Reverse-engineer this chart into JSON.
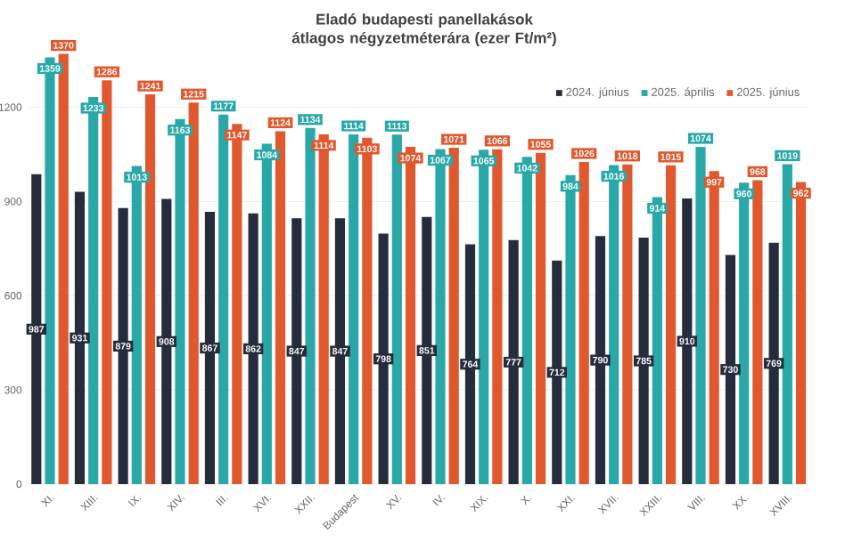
{
  "chart_data": {
    "type": "bar",
    "title": "Eladó budapesti panellakások átlagos négyzetméterára (ezer Ft/m²)",
    "categories": [
      "XI.",
      "XIII.",
      "IX.",
      "XIV.",
      "III.",
      "XVI.",
      "XXII.",
      "Budapest",
      "XV.",
      "IV.",
      "XIX.",
      "X.",
      "XXI.",
      "XVII.",
      "XXIII.",
      "VIII.",
      "XX.",
      "XVIII."
    ],
    "series": [
      {
        "name": "2024. június",
        "color": "#252d3d",
        "values": [
          987,
          931,
          879,
          908,
          867,
          862,
          847,
          847,
          798,
          851,
          764,
          777,
          712,
          790,
          785,
          910,
          730,
          769
        ]
      },
      {
        "name": "2025. április",
        "color": "#2aa8a8",
        "values": [
          1359,
          1233,
          1013,
          1163,
          1177,
          1084,
          1134,
          1114,
          1113,
          1067,
          1065,
          1042,
          984,
          1016,
          914,
          1074,
          960,
          1019
        ]
      },
      {
        "name": "2025. június",
        "color": "#e0582e",
        "values": [
          1370,
          1286,
          1241,
          1215,
          1147,
          1124,
          1114,
          1103,
          1074,
          1071,
          1066,
          1055,
          1026,
          1018,
          1015,
          997,
          968,
          962
        ]
      }
    ],
    "ylim": [
      0,
      1400
    ],
    "yticks": [
      0,
      300,
      600,
      900,
      1200
    ],
    "grid": "y",
    "legend": "top right",
    "data_labels": true
  }
}
